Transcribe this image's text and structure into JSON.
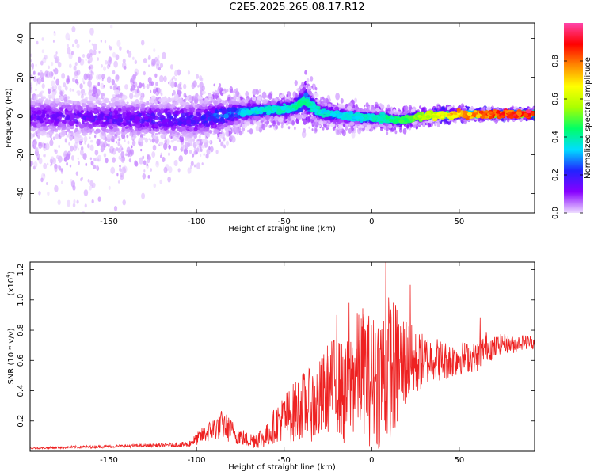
{
  "title": "C2E5.2025.265.08.17.R12",
  "colors": {
    "snr_line": "#ee2222",
    "axis": "#000000"
  },
  "chart_data": [
    {
      "type": "heatmap",
      "xlabel": "Height of straight line (km)",
      "ylabel": "Frequency (Hz)",
      "xlim": [
        -195,
        93
      ],
      "ylim": [
        -50,
        48
      ],
      "x_ticks": [
        -150,
        -100,
        -50,
        0,
        50
      ],
      "x_tick_labels": [
        "-150",
        "-100",
        "-50",
        "0",
        "50"
      ],
      "y_ticks": [
        -40,
        -20,
        0,
        20,
        40
      ],
      "y_tick_labels": [
        "-40",
        "-20",
        "0",
        "20",
        "40"
      ],
      "colorbar": {
        "label": "Normalized spectral amplitude",
        "range": [
          0,
          1
        ],
        "ticks": [
          0.0,
          0.2,
          0.4,
          0.6,
          0.8
        ],
        "tick_labels": [
          "0.0",
          "0.2",
          "0.4",
          "0.6",
          "0.8"
        ],
        "colors": [
          "#eeddff",
          "#8800ff",
          "#2222ff",
          "#00ddff",
          "#00ff66",
          "#aaff00",
          "#ffff00",
          "#ff8800",
          "#ff0000",
          "#ff44aa"
        ]
      },
      "ridge": {
        "x": [
          -195,
          -150,
          -100,
          -75,
          -60,
          -45,
          -38,
          -30,
          -15,
          0,
          15,
          30,
          50,
          70,
          93
        ],
        "center_hz": [
          0,
          -1,
          -2,
          2,
          3,
          4,
          8,
          2,
          0,
          -1,
          -2,
          0,
          1,
          1,
          1
        ],
        "peak_amplitude": [
          0.15,
          0.18,
          0.22,
          0.33,
          0.38,
          0.4,
          0.45,
          0.38,
          0.35,
          0.4,
          0.45,
          0.6,
          0.78,
          0.85,
          0.95
        ],
        "noise_extent_hz": [
          48,
          48,
          25,
          12,
          10,
          10,
          18,
          10,
          9,
          8,
          7,
          5,
          4,
          3,
          3
        ]
      }
    },
    {
      "type": "line",
      "xlabel": "Height of straight line (km)",
      "ylabel": "SNR (10 * v/v)",
      "y_scale_label": "(x10",
      "y_scale_exp": "4",
      "scale": 10000,
      "xlim": [
        -195,
        93
      ],
      "ylim": [
        0,
        1.25
      ],
      "x_ticks": [
        -150,
        -100,
        -50,
        0,
        50
      ],
      "x_tick_labels": [
        "-150",
        "-100",
        "-50",
        "0",
        "50"
      ],
      "y_ticks": [
        0.2,
        0.4,
        0.6,
        0.8,
        1.0,
        1.2
      ],
      "y_tick_labels": [
        "0.2",
        "0.4",
        "0.6",
        "0.8",
        "1.0",
        "1.2"
      ],
      "series": [
        {
          "name": "SNR",
          "x": [
            -195,
            -180,
            -160,
            -140,
            -120,
            -105,
            -100,
            -90,
            -85,
            -80,
            -75,
            -70,
            -60,
            -55,
            -50,
            -45,
            -40,
            -35,
            -30,
            -25,
            -20,
            -15,
            -10,
            -5,
            0,
            5,
            10,
            15,
            20,
            25,
            30,
            35,
            40,
            45,
            50,
            55,
            60,
            65,
            70,
            75,
            80,
            85,
            93
          ],
          "y": [
            0.02,
            0.025,
            0.03,
            0.035,
            0.04,
            0.045,
            0.08,
            0.15,
            0.18,
            0.13,
            0.1,
            0.07,
            0.1,
            0.18,
            0.22,
            0.25,
            0.3,
            0.3,
            0.32,
            0.42,
            0.45,
            0.35,
            0.5,
            0.55,
            0.45,
            0.5,
            0.55,
            0.55,
            0.6,
            0.58,
            0.6,
            0.62,
            0.6,
            0.6,
            0.62,
            0.62,
            0.62,
            0.7,
            0.68,
            0.72,
            0.7,
            0.72,
            0.72
          ],
          "amplitude": [
            0.005,
            0.008,
            0.01,
            0.01,
            0.012,
            0.02,
            0.04,
            0.08,
            0.1,
            0.08,
            0.06,
            0.05,
            0.08,
            0.12,
            0.16,
            0.2,
            0.22,
            0.25,
            0.28,
            0.3,
            0.32,
            0.35,
            0.4,
            0.42,
            0.45,
            0.48,
            0.5,
            0.42,
            0.3,
            0.22,
            0.18,
            0.15,
            0.14,
            0.12,
            0.12,
            0.1,
            0.1,
            0.1,
            0.08,
            0.06,
            0.06,
            0.05,
            0.05
          ],
          "peaks": [
            {
              "x": 8,
              "y": 1.25
            },
            {
              "x": 22,
              "y": 1.1
            },
            {
              "x": -13,
              "y": 0.98
            },
            {
              "x": 62,
              "y": 0.88
            },
            {
              "x": -20,
              "y": 0.9
            }
          ]
        }
      ]
    }
  ]
}
